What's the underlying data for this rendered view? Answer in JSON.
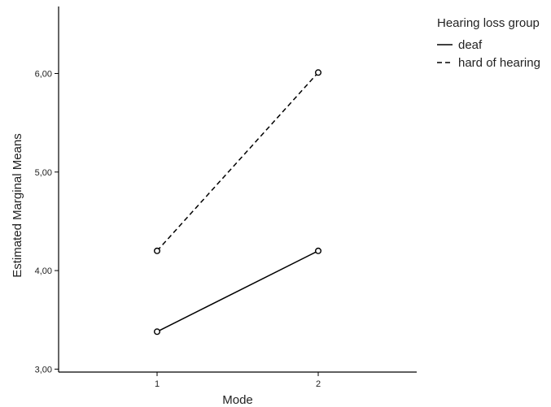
{
  "chart_data": {
    "type": "line",
    "xlabel": "Mode",
    "ylabel": "Estimated Marginal Means",
    "categories": [
      "1",
      "2"
    ],
    "ylim": [
      2.97,
      6.68
    ],
    "yticks": [
      3.0,
      4.0,
      5.0,
      6.0
    ],
    "ytick_labels": [
      "3,00",
      "4,00",
      "5,00",
      "6,00"
    ],
    "grid": false,
    "legend": {
      "title": "Hearing loss group",
      "position": "top-right"
    },
    "series": [
      {
        "name": "deaf",
        "values": [
          3.38,
          4.2
        ],
        "line_style": "solid",
        "marker": "open-circle",
        "color": "#000000"
      },
      {
        "name": "hard of hearing",
        "values": [
          4.2,
          6.01
        ],
        "line_style": "dashed",
        "marker": "open-circle",
        "color": "#000000"
      }
    ]
  }
}
